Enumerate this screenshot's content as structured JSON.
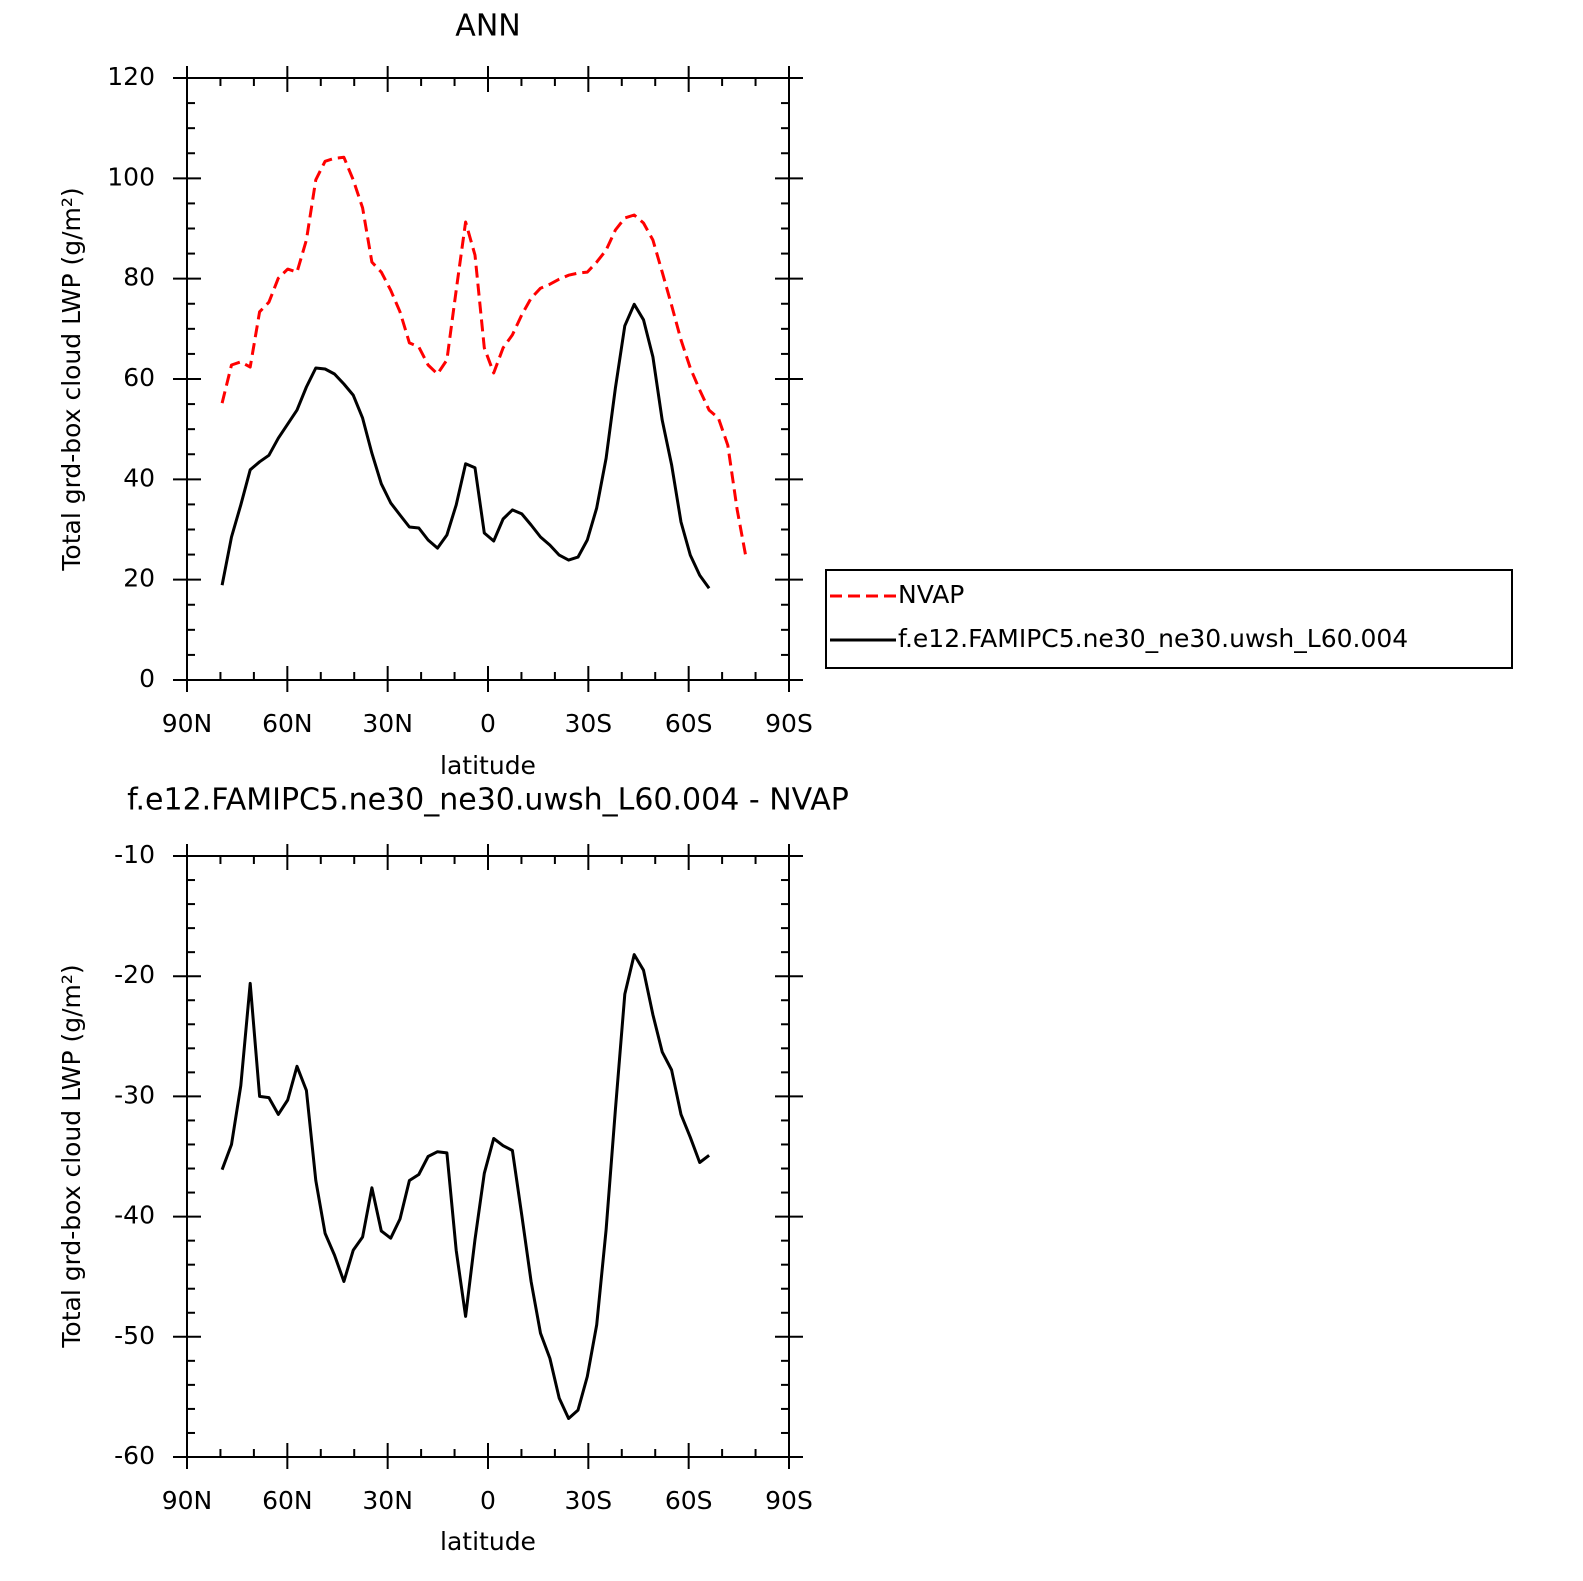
{
  "chart_data": [
    {
      "type": "line",
      "title": "ANN",
      "xlabel": "latitude",
      "ylabel": "Total grd-box cloud LWP (g/m²)",
      "x": [
        79.5,
        76.7,
        73.9,
        71.1,
        68.3,
        65.5,
        62.7,
        59.9,
        57.1,
        54.3,
        51.5,
        48.7,
        45.9,
        43.1,
        40.3,
        37.5,
        34.7,
        31.9,
        29.1,
        26.3,
        23.5,
        20.7,
        17.9,
        15.1,
        12.3,
        9.5,
        6.7,
        3.9,
        1.1,
        -1.7,
        -4.5,
        -7.3,
        -10.1,
        -12.9,
        -15.7,
        -18.5,
        -21.3,
        -24.1,
        -26.9,
        -29.7,
        -32.5,
        -35.3,
        -38.1,
        -40.9,
        -43.7,
        -46.5,
        -49.3,
        -52.1,
        -54.9,
        -57.7,
        -60.5,
        -63.3,
        -66.1,
        -68.9,
        -71.7,
        -74.5,
        -77.3
      ],
      "series": [
        {
          "name": "NVAP",
          "color": "#ff0000",
          "linestyle": "dashed",
          "values": [
            55.2,
            62.8,
            63.4,
            62.4,
            73.4,
            75.3,
            80.1,
            81.9,
            81.3,
            87.7,
            99.7,
            103.4,
            104.0,
            104.2,
            99.7,
            94.1,
            83.3,
            81.3,
            77.7,
            73.4,
            67.2,
            66.4,
            62.8,
            61.0,
            63.8,
            77.7,
            91.3,
            84.7,
            66.2,
            61.2,
            66.2,
            68.8,
            72.8,
            76.1,
            78.1,
            78.9,
            79.9,
            80.7,
            81.1,
            81.3,
            83.3,
            85.7,
            89.7,
            92.1,
            92.7,
            91.1,
            87.7,
            81.3,
            74.7,
            67.8,
            62.2,
            57.8,
            53.8,
            52.2,
            46.8,
            33.9,
            23.9
          ]
        },
        {
          "name": "f.e12.FAMIPC5.ne30_ne30.uwsh_L60.004",
          "color": "#000000",
          "linestyle": "solid",
          "values": [
            18.9,
            28.5,
            34.9,
            41.9,
            43.5,
            44.8,
            48.2,
            51.0,
            53.8,
            58.4,
            62.2,
            62.0,
            61.0,
            59.0,
            56.8,
            52.2,
            45.2,
            39.1,
            35.3,
            32.9,
            30.5,
            30.3,
            27.9,
            26.3,
            28.9,
            34.9,
            43.1,
            42.3,
            29.3,
            27.7,
            32.1,
            33.9,
            33.1,
            30.9,
            28.5,
            26.9,
            24.9,
            23.9,
            24.5,
            27.9,
            34.3,
            44.2,
            58.2,
            70.6,
            74.9,
            71.8,
            64.4,
            51.8,
            42.9,
            31.5,
            24.9,
            20.9,
            18.3,
            null,
            null,
            null,
            null
          ]
        }
      ],
      "xlim": [
        90,
        -90
      ],
      "xticks": [
        {
          "value": 90,
          "label": "90N"
        },
        {
          "value": 60,
          "label": "60N"
        },
        {
          "value": 30,
          "label": "30N"
        },
        0,
        {
          "value": -30,
          "label": "30S"
        },
        {
          "value": -60,
          "label": "60S"
        },
        {
          "value": -90,
          "label": "90S"
        }
      ],
      "ylim": [
        0,
        120
      ],
      "yticks": [
        0,
        20,
        40,
        60,
        80,
        100,
        120
      ],
      "legend": "right"
    },
    {
      "type": "line",
      "title": "f.e12.FAMIPC5.ne30_ne30.uwsh_L60.004 - NVAP",
      "xlabel": "latitude",
      "ylabel": "Total grd-box cloud LWP (g/m²)",
      "x": [
        79.5,
        76.7,
        73.9,
        71.1,
        68.3,
        65.5,
        62.7,
        59.9,
        57.1,
        54.3,
        51.5,
        48.7,
        45.9,
        43.1,
        40.3,
        37.5,
        34.7,
        31.9,
        29.1,
        26.3,
        23.5,
        20.7,
        17.9,
        15.1,
        12.3,
        9.5,
        6.7,
        3.9,
        1.1,
        -1.7,
        -4.5,
        -7.3,
        -10.1,
        -12.9,
        -15.7,
        -18.5,
        -21.3,
        -24.1,
        -26.9,
        -29.7,
        -32.5,
        -35.3,
        -38.1,
        -40.9,
        -43.7,
        -46.5,
        -49.3,
        -52.1,
        -54.9,
        -57.7,
        -60.5,
        -63.3,
        -66.1,
        -68.9,
        -71.7,
        -74.5,
        -77.3
      ],
      "series": [
        {
          "color": "#000000",
          "linestyle": "solid",
          "values": [
            -36.1,
            -34.0,
            -29.1,
            -20.6,
            -30.0,
            -30.1,
            -31.5,
            -30.3,
            -27.5,
            -29.5,
            -37.0,
            -41.4,
            -43.2,
            -45.4,
            -42.8,
            -41.7,
            -37.6,
            -41.2,
            -41.8,
            -40.2,
            -37.0,
            -36.5,
            -35.0,
            -34.6,
            -34.7,
            -42.8,
            -48.3,
            -41.9,
            -36.4,
            -33.5,
            -34.1,
            -34.5,
            -39.9,
            -45.4,
            -49.7,
            -51.8,
            -55.1,
            -56.8,
            -56.1,
            -53.3,
            -49.0,
            -41.1,
            -31.1,
            -21.5,
            -18.2,
            -19.5,
            -23.2,
            -26.3,
            -27.8,
            -31.5,
            -33.4,
            -35.5,
            -34.9,
            null,
            null,
            null,
            null
          ]
        }
      ],
      "xlim": [
        90,
        -90
      ],
      "xticks": [
        {
          "value": 90,
          "label": "90N"
        },
        {
          "value": 60,
          "label": "60N"
        },
        {
          "value": 30,
          "label": "30N"
        },
        0,
        {
          "value": -30,
          "label": "30S"
        },
        {
          "value": -60,
          "label": "60S"
        },
        {
          "value": -90,
          "label": "90S"
        }
      ],
      "ylim": [
        -60,
        -10
      ],
      "yticks": [
        -60,
        -50,
        -40,
        -30,
        -20,
        -10
      ]
    }
  ]
}
